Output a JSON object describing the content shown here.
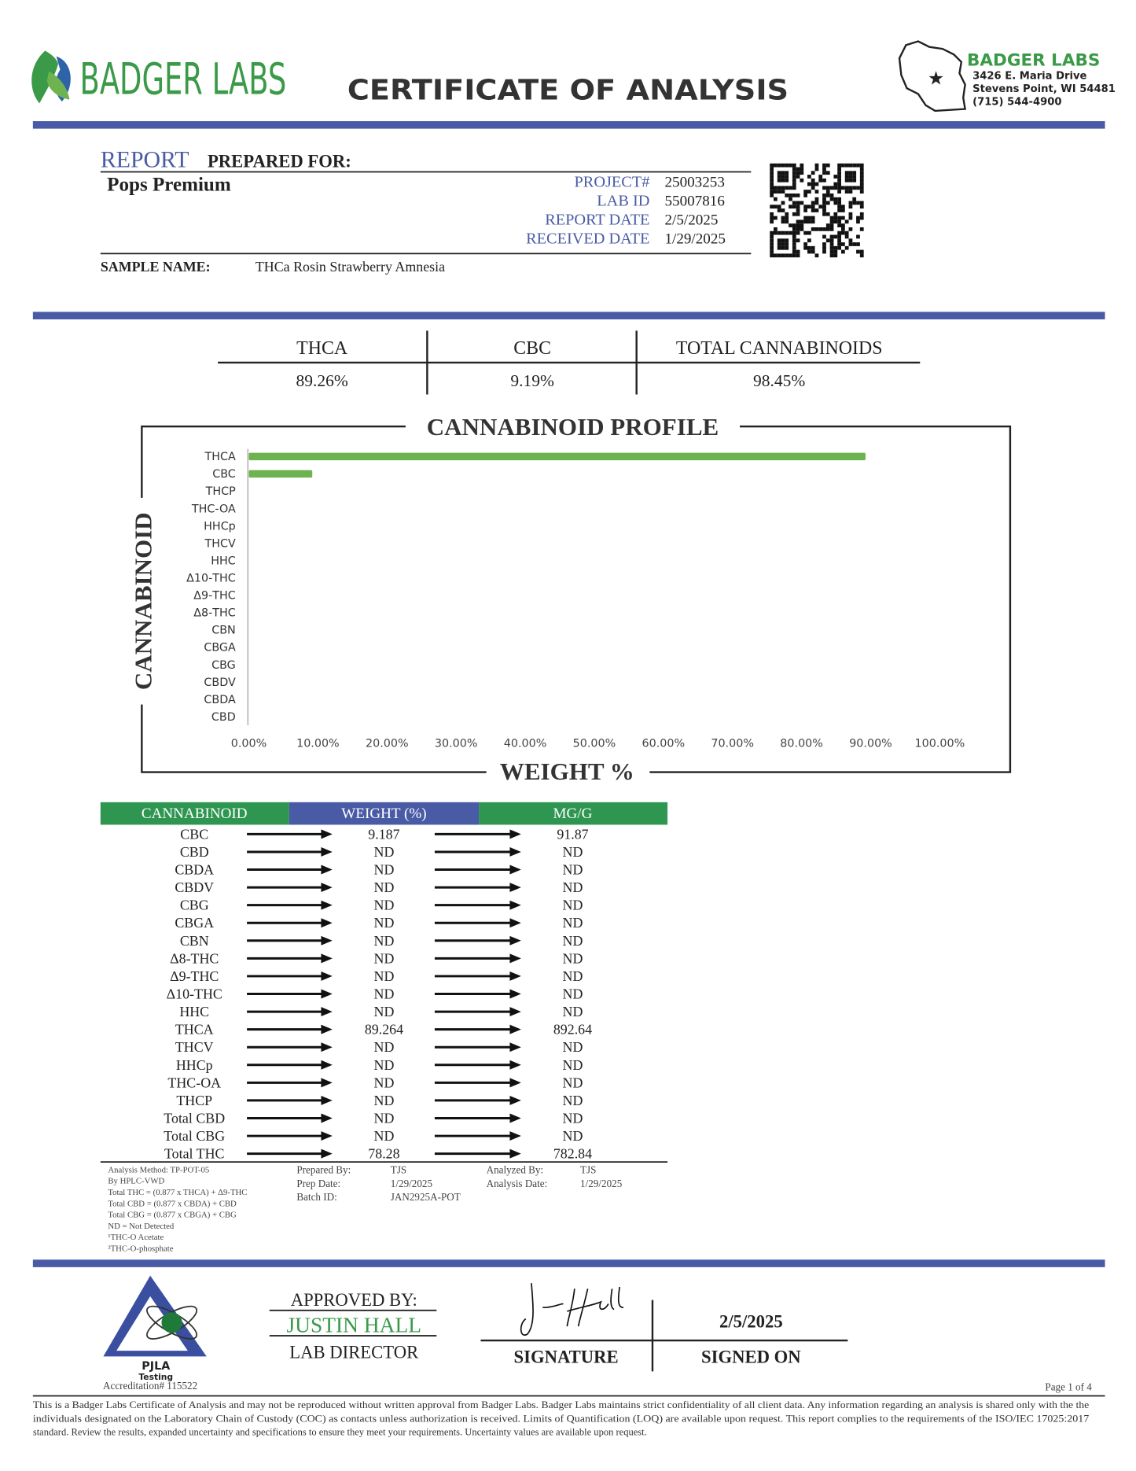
{
  "header": {
    "logo_text": "BADGER LABS",
    "title": "CERTIFICATE OF ANALYSIS",
    "company": "BADGER LABS",
    "address": [
      "3426 E. Maria Drive",
      "Stevens Point, WI 54481",
      "(715) 544-4900"
    ]
  },
  "report": {
    "heading": "REPORT",
    "heading_rest": "PREPARED FOR:",
    "client": "Pops Premium",
    "fields": [
      {
        "label": "PROJECT#",
        "value": "25003253"
      },
      {
        "label": "LAB ID",
        "value": "55007816"
      },
      {
        "label": "REPORT DATE",
        "value": "2/5/2025"
      },
      {
        "label": "RECEIVED DATE",
        "value": "1/29/2025"
      }
    ],
    "sample_name_label": "SAMPLE NAME:",
    "sample_name": "THCa Rosin Strawberry Amnesia"
  },
  "summary": [
    {
      "label": "THCA",
      "value": "89.26%"
    },
    {
      "label": "CBC",
      "value": "9.19%"
    },
    {
      "label": "TOTAL CANNABINOIDS",
      "value": "98.45%"
    }
  ],
  "chart_data": {
    "type": "bar",
    "orientation": "horizontal",
    "title": "CANNABINOID PROFILE",
    "y_label": "CANNABINOID",
    "x_label": "WEIGHT %",
    "categories": [
      "THCA",
      "CBC",
      "THCP",
      "THC-OA",
      "HHCp",
      "THCV",
      "HHC",
      "Δ10-THC",
      "Δ9-THC",
      "Δ8-THC",
      "CBN",
      "CBGA",
      "CBG",
      "CBDV",
      "CBDA",
      "CBD"
    ],
    "values": [
      89.264,
      9.187,
      0,
      0,
      0,
      0,
      0,
      0,
      0,
      0,
      0,
      0,
      0,
      0,
      0,
      0
    ],
    "color": "#6db34f",
    "xlim": [
      0,
      100
    ],
    "xticks": [
      {
        "value": 0,
        "label": "0.00%"
      },
      {
        "value": 10,
        "label": "10.00%"
      },
      {
        "value": 20,
        "label": "20.00%"
      },
      {
        "value": 30,
        "label": "30.00%"
      },
      {
        "value": 40,
        "label": "40.00%"
      },
      {
        "value": 50,
        "label": "50.00%"
      },
      {
        "value": 60,
        "label": "60.00%"
      },
      {
        "value": 70,
        "label": "70.00%"
      },
      {
        "value": 80,
        "label": "80.00%"
      },
      {
        "value": 90,
        "label": "90.00%"
      },
      {
        "value": 100,
        "label": "100.00%"
      }
    ],
    "grid": false
  },
  "table": {
    "headers": [
      "CANNABINOID",
      "WEIGHT (%)",
      "MG/G"
    ],
    "rows": [
      [
        "CBC",
        "9.187",
        "91.87"
      ],
      [
        "CBD",
        "ND",
        "ND"
      ],
      [
        "CBDA",
        "ND",
        "ND"
      ],
      [
        "CBDV",
        "ND",
        "ND"
      ],
      [
        "CBG",
        "ND",
        "ND"
      ],
      [
        "CBGA",
        "ND",
        "ND"
      ],
      [
        "CBN",
        "ND",
        "ND"
      ],
      [
        "Δ8-THC",
        "ND",
        "ND"
      ],
      [
        "Δ9-THC",
        "ND",
        "ND"
      ],
      [
        "Δ10-THC",
        "ND",
        "ND"
      ],
      [
        "HHC",
        "ND",
        "ND"
      ],
      [
        "THCA",
        "89.264",
        "892.64"
      ],
      [
        "THCV",
        "ND",
        "ND"
      ],
      [
        "HHCp",
        "ND",
        "ND"
      ],
      [
        "THC-OA",
        "ND",
        "ND"
      ],
      [
        "THCP",
        "ND",
        "ND"
      ],
      [
        "Total CBD",
        "ND",
        "ND"
      ],
      [
        "Total CBG",
        "ND",
        "ND"
      ],
      [
        "Total THC",
        "78.28",
        "782.84"
      ]
    ]
  },
  "notes": {
    "method": [
      "Analysis Method: TP-POT-05",
      "By HPLC-VWD",
      "Total THC = (0.877 x  THCA) + Δ9-THC",
      "Total CBD = (0.877 x  CBDA) + CBD",
      "Total CBG = (0.877 x  CBGA) + CBG",
      "ND = Not Detected",
      "¹THC-O Acetate",
      "²THC-O-phosphate"
    ],
    "prep": [
      [
        "Prepared By:",
        "TJS"
      ],
      [
        "Prep Date:",
        "1/29/2025"
      ],
      [
        "Batch ID:",
        "JAN2925A-POT"
      ]
    ],
    "analysis": [
      [
        "Analyzed By:",
        "TJS"
      ],
      [
        "Analysis Date:",
        "1/29/2025"
      ]
    ]
  },
  "footer": {
    "pjla": "PJLA",
    "pjla_sub": "Testing",
    "accreditation": "Accreditation# 115522",
    "approved_by": "APPROVED BY:",
    "approver": "JUSTIN HALL",
    "role": "LAB DIRECTOR",
    "signature_label": "SIGNATURE",
    "signed_on_label": "SIGNED ON",
    "signed_date": "2/5/2025",
    "page": "Page 1 of 4",
    "disclaimer": [
      "This is a Badger Labs Certificate of Analysis and may not be reproduced without written approval from Badger Labs. Badger Labs maintains strict confidentiality of all client data. Any information regarding an analysis is shared only with the the",
      "individuals designated on the Laboratory Chain of Custody (COC) as contacts unless authorization is received. Limits of Quantification (LOQ) are available upon request. This report complies to the requirements of the ISO/IEC 17025:2017",
      "standard. Review the results, expanded uncertainty and specifications to ensure they meet your requirements. Uncertainty values are available upon request."
    ]
  }
}
